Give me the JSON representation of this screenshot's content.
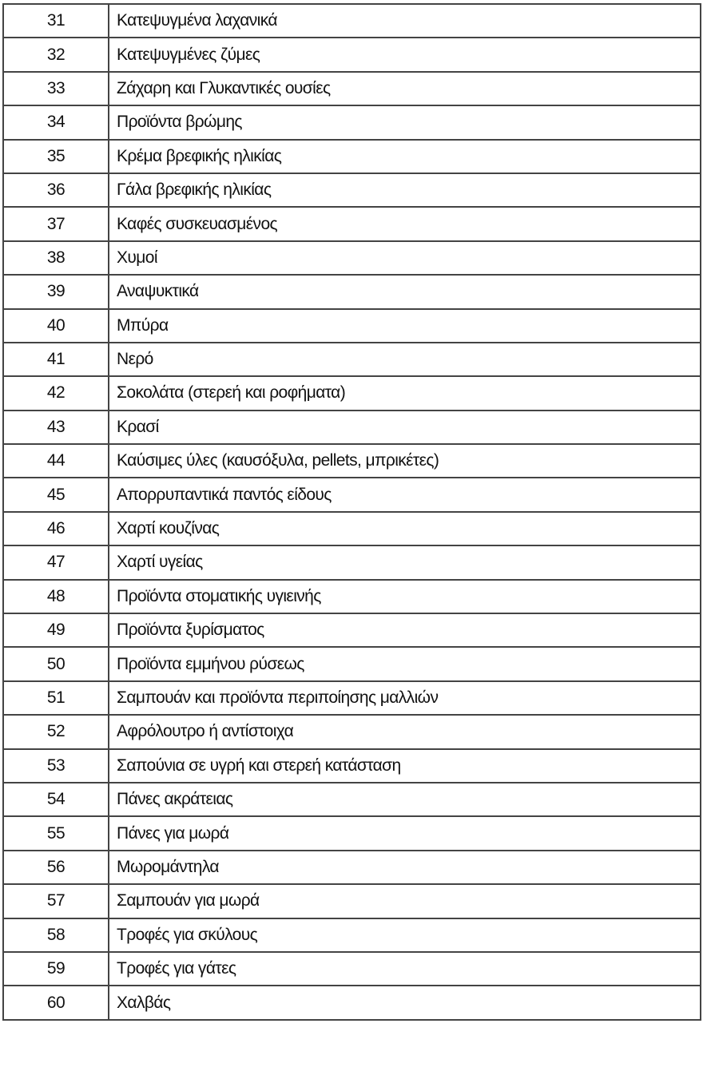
{
  "table": {
    "rows": [
      {
        "num": "31",
        "name": "Κατεψυγμένα λαχανικά"
      },
      {
        "num": "32",
        "name": "Κατεψυγμένες ζύμες"
      },
      {
        "num": "33",
        "name": "Ζάχαρη και Γλυκαντικές ουσίες"
      },
      {
        "num": "34",
        "name": "Προϊόντα βρώμης"
      },
      {
        "num": "35",
        "name": "Κρέμα βρεφικής ηλικίας"
      },
      {
        "num": "36",
        "name": "Γάλα βρεφικής ηλικίας"
      },
      {
        "num": "37",
        "name": "Καφές συσκευασμένος"
      },
      {
        "num": "38",
        "name": "Χυμοί"
      },
      {
        "num": "39",
        "name": "Αναψυκτικά"
      },
      {
        "num": "40",
        "name": "Μπύρα"
      },
      {
        "num": "41",
        "name": "Νερό"
      },
      {
        "num": "42",
        "name": "Σοκολάτα (στερεή και ροφήματα)"
      },
      {
        "num": "43",
        "name": "Κρασί"
      },
      {
        "num": "44",
        "name": "Καύσιμες ύλες (καυσόξυλα, pellets, μπρικέτες)"
      },
      {
        "num": "45",
        "name": "Απορρυπαντικά παντός είδους"
      },
      {
        "num": "46",
        "name": "Χαρτί κουζίνας"
      },
      {
        "num": "47",
        "name": "Χαρτί υγείας"
      },
      {
        "num": "48",
        "name": "Προϊόντα στοματικής υγιεινής"
      },
      {
        "num": "49",
        "name": "Προϊόντα ξυρίσματος"
      },
      {
        "num": "50",
        "name": "Προϊόντα εμμήνου ρύσεως"
      },
      {
        "num": "51",
        "name": "Σαμπουάν και προϊόντα περιποίησης μαλλιών"
      },
      {
        "num": "52",
        "name": "Αφρόλουτρο ή αντίστοιχα"
      },
      {
        "num": "53",
        "name": "Σαπούνια σε υγρή και στερεή κατάσταση"
      },
      {
        "num": "54",
        "name": "Πάνες ακράτειας"
      },
      {
        "num": "55",
        "name": "Πάνες για μωρά"
      },
      {
        "num": "56",
        "name": "Μωρομάντηλα"
      },
      {
        "num": "57",
        "name": "Σαμπουάν για μωρά"
      },
      {
        "num": "58",
        "name": "Τροφές για σκύλους"
      },
      {
        "num": "59",
        "name": "Τροφές για γάτες"
      },
      {
        "num": "60",
        "name": "Χαλβάς"
      }
    ]
  }
}
